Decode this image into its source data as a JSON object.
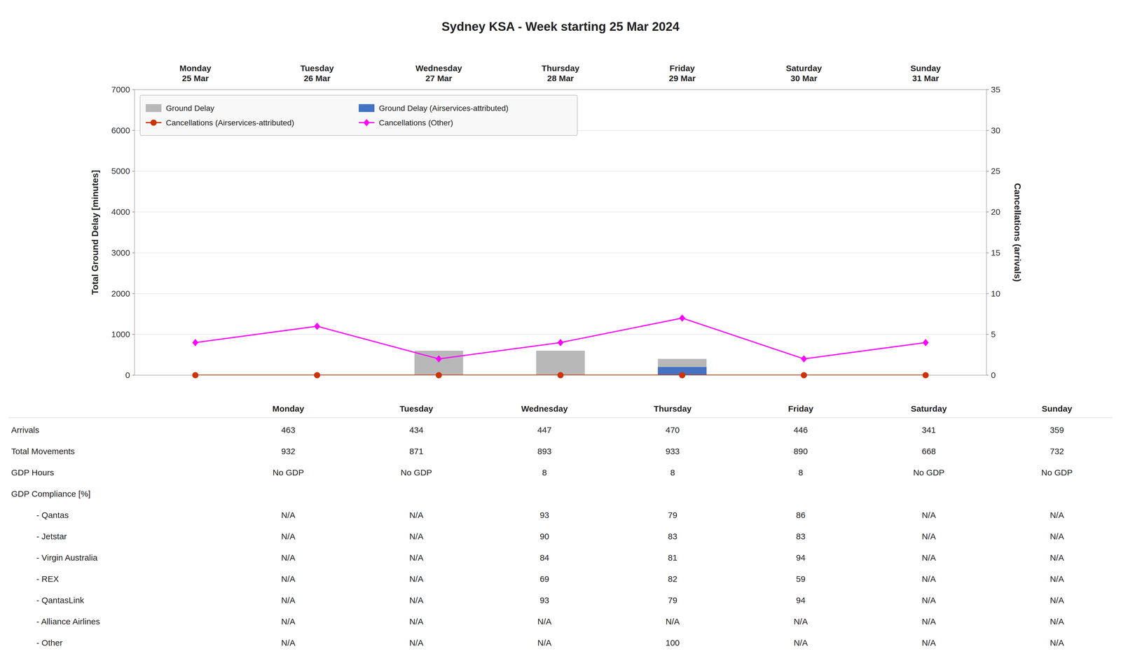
{
  "chart_data": {
    "type": "bar",
    "title": "Sydney KSA - Week starting 25 Mar 2024",
    "categories": [
      "Monday\n25 Mar",
      "Tuesday\n26 Mar",
      "Wednesday\n27 Mar",
      "Thursday\n28 Mar",
      "Friday\n29 Mar",
      "Saturday\n30 Mar",
      "Sunday\n31 Mar"
    ],
    "series": [
      {
        "name": "Ground Delay",
        "type": "bar",
        "color": "#b8b8b8",
        "values": [
          0,
          0,
          600,
          600,
          400,
          0,
          0
        ]
      },
      {
        "name": "Ground Delay (Airservices-attributed)",
        "type": "bar",
        "color": "#4472c4",
        "values": [
          0,
          0,
          0,
          0,
          200,
          0,
          0
        ]
      },
      {
        "name": "Cancellations (Airservices-attributed)",
        "type": "line",
        "axis": "y2",
        "color": "#cc3300",
        "marker": "circle",
        "values": [
          0,
          0,
          0,
          0,
          0,
          0,
          0
        ]
      },
      {
        "name": "Cancellations (Other)",
        "type": "line",
        "axis": "y2",
        "color": "#ff00ff",
        "marker": "diamond",
        "values": [
          4,
          6,
          2,
          4,
          7,
          2,
          4
        ]
      }
    ],
    "ylabel": "Total Ground Delay [minutes]",
    "y2label": "Cancellations (arrivals)",
    "ylim": [
      0,
      7000
    ],
    "yticks": [
      0,
      1000,
      2000,
      3000,
      4000,
      5000,
      6000,
      7000
    ],
    "y2lim": [
      0,
      35
    ],
    "y2ticks": [
      0,
      5,
      10,
      15,
      20,
      25,
      30,
      35
    ],
    "grid": true,
    "legend": "upper left",
    "table": {
      "columns": [
        "Monday",
        "Tuesday",
        "Wednesday",
        "Thursday",
        "Friday",
        "Saturday",
        "Sunday"
      ],
      "rows": [
        {
          "label": "Arrivals",
          "values": [
            "463",
            "434",
            "447",
            "470",
            "446",
            "341",
            "359"
          ]
        },
        {
          "label": "Total Movements",
          "values": [
            "932",
            "871",
            "893",
            "933",
            "890",
            "668",
            "732"
          ]
        },
        {
          "label": "GDP Hours",
          "values": [
            "No GDP",
            "No GDP",
            "8",
            "8",
            "8",
            "No GDP",
            "No GDP"
          ]
        },
        {
          "label": "GDP Compliance [%]",
          "values": [
            null,
            null,
            null,
            null,
            null,
            null,
            null
          ]
        },
        {
          "label": "- Qantas",
          "values": [
            "N/A",
            "N/A",
            "93",
            "79",
            "86",
            "N/A",
            "N/A"
          ]
        },
        {
          "label": "- Jetstar",
          "values": [
            "N/A",
            "N/A",
            "90",
            "83",
            "83",
            "N/A",
            "N/A"
          ]
        },
        {
          "label": "- Virgin Australia",
          "values": [
            "N/A",
            "N/A",
            "84",
            "81",
            "94",
            "N/A",
            "N/A"
          ]
        },
        {
          "label": "- REX",
          "values": [
            "N/A",
            "N/A",
            "69",
            "82",
            "59",
            "N/A",
            "N/A"
          ]
        },
        {
          "label": "- QantasLink",
          "values": [
            "N/A",
            "N/A",
            "93",
            "79",
            "94",
            "N/A",
            "N/A"
          ]
        },
        {
          "label": "- Alliance Airlines",
          "values": [
            "N/A",
            "N/A",
            "N/A",
            "N/A",
            "N/A",
            "N/A",
            "N/A"
          ]
        },
        {
          "label": "- Other",
          "values": [
            "N/A",
            "N/A",
            "N/A",
            "100",
            "N/A",
            "N/A",
            "N/A"
          ]
        }
      ]
    }
  }
}
